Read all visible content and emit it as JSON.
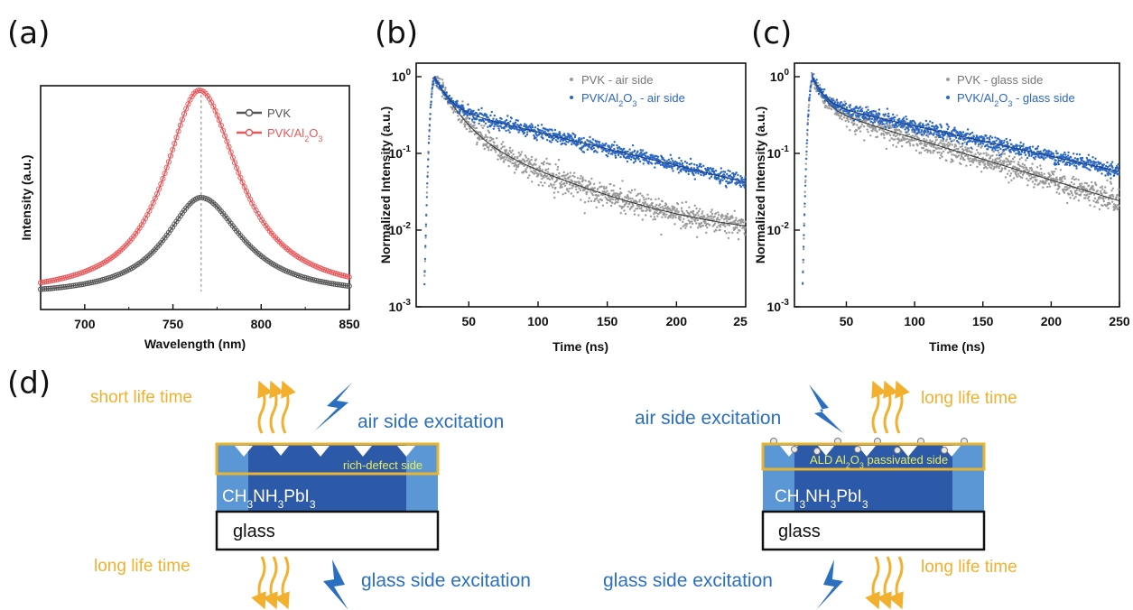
{
  "chart_data": [
    {
      "panel": "(a)",
      "type": "line",
      "xlabel": "Wavelength (nm)",
      "ylabel": "Intensity (a.u.)",
      "xlim": [
        675,
        850
      ],
      "xticks": [
        700,
        750,
        800,
        850
      ],
      "peak_marker_x": 766,
      "legend_position": "top-right",
      "series": [
        {
          "name": "PVK",
          "color": "#555555",
          "peak_x": 766,
          "peak_y": 0.5,
          "baseline": 0.06,
          "width": 26
        },
        {
          "name": "PVK/Al2O3",
          "color": "#e8585a",
          "peak_x": 765,
          "peak_y": 0.98,
          "baseline": 0.06,
          "width": 25
        }
      ]
    },
    {
      "panel": "(b)",
      "type": "scatter",
      "xlabel": "Time (ns)",
      "ylabel": "Normalized Intensity (a.u.)",
      "xlim": [
        12,
        250
      ],
      "xticks": [
        50,
        100,
        150,
        200
      ],
      "xtick_extra_label": "25",
      "ylim": [
        0.001,
        1.5
      ],
      "yscale": "log",
      "legend_position": "top-right",
      "series": [
        {
          "name": "PVK - air side",
          "color": "#9a9a9a",
          "t0": 25,
          "a1": 0.8,
          "tau1": 12,
          "a2": 0.2,
          "tau2": 55,
          "floor": 0.008
        },
        {
          "name": "PVK/Al2O3 - air side",
          "color": "#2b67c4",
          "t0": 25,
          "a1": 0.6,
          "tau1": 8,
          "a2": 0.4,
          "tau2": 100,
          "floor": 0.0
        }
      ]
    },
    {
      "panel": "(c)",
      "type": "scatter",
      "xlabel": "Time (ns)",
      "ylabel": "Normalized Intensity (a.u.)",
      "xlim": [
        12,
        250
      ],
      "xticks": [
        50,
        100,
        150,
        200,
        250
      ],
      "ylim": [
        0.001,
        1.5
      ],
      "yscale": "log",
      "legend_position": "top-right",
      "series": [
        {
          "name": "PVK - glass side",
          "color": "#9a9a9a",
          "t0": 25,
          "a1": 0.6,
          "tau1": 7,
          "a2": 0.4,
          "tau2": 80,
          "floor": 0.0
        },
        {
          "name": "PVK/Al2O3 - glass side",
          "color": "#2b67c4",
          "t0": 25,
          "a1": 0.55,
          "tau1": 7,
          "a2": 0.45,
          "tau2": 110,
          "floor": 0.0
        }
      ]
    }
  ],
  "panel_d": {
    "letter": "(d)",
    "left": {
      "top_lifetime": "short life time",
      "top_excitation": "air side excitation",
      "layer_label": "rich-defect side",
      "perovskite": "CH3NH3PbI3",
      "substrate": "glass",
      "bottom_lifetime": "long life time",
      "bottom_excitation": "glass side excitation"
    },
    "right": {
      "top_excitation": "air side excitation",
      "top_lifetime": "long life time",
      "layer_label": "ALD Al2O3 passivated side",
      "perovskite": "CH3NH3PbI3",
      "substrate": "glass",
      "bottom_excitation": "glass side excitation",
      "bottom_lifetime": "long life time"
    },
    "colors": {
      "lifetime": "#f2b02e",
      "excitation": "#2b6fc0",
      "layer_highlight": "#e8b430",
      "perovskite_dark": "#2d5aa8",
      "perovskite_light": "#5b97d4",
      "layer_text": "#e9ee5a"
    }
  }
}
